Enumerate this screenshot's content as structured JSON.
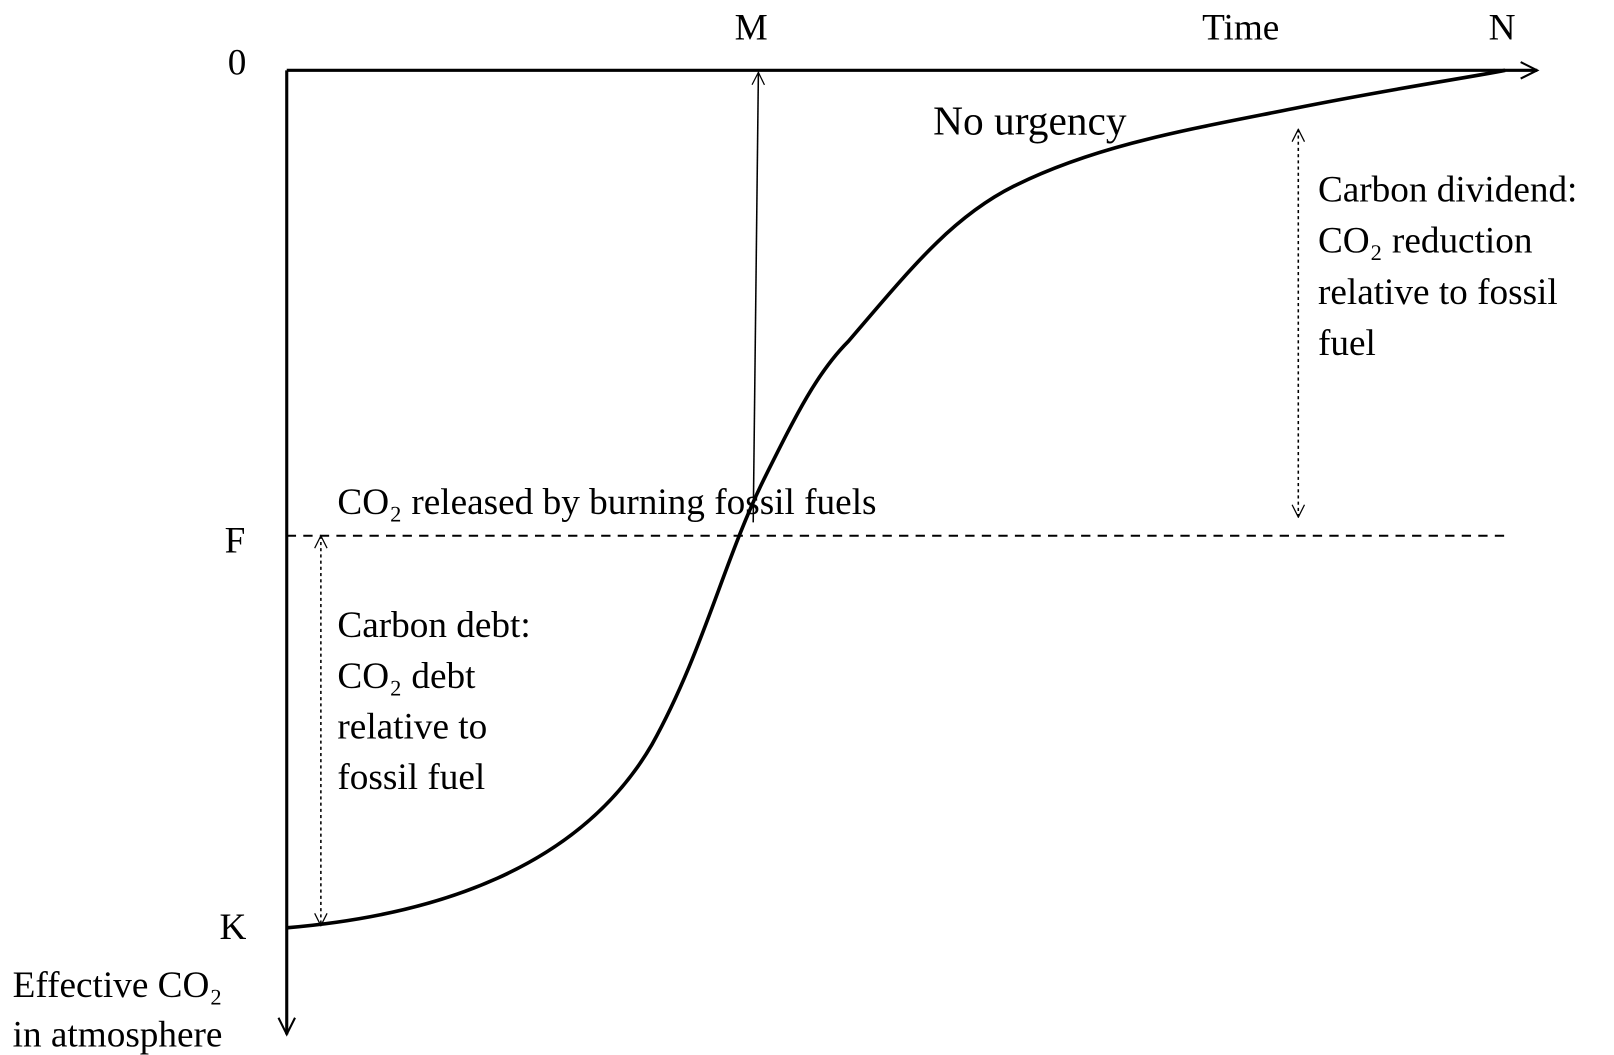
{
  "axes": {
    "origin": "0",
    "x_label": "Time",
    "y_label_line1": "Effective CO₂",
    "y_label_line2": "in atmosphere",
    "x_points": [
      "M",
      "N"
    ],
    "y_points": [
      "F",
      "K"
    ]
  },
  "curve_label": "No urgency",
  "baseline_label": "CO₂ released by burning fossil fuels",
  "dividend": {
    "lines": [
      "Carbon dividend:",
      "CO₂ reduction",
      "relative to fossil",
      "fuel"
    ]
  },
  "debt": {
    "lines": [
      "Carbon debt:",
      "CO₂ debt",
      "relative to",
      "fossil fuel"
    ]
  }
}
